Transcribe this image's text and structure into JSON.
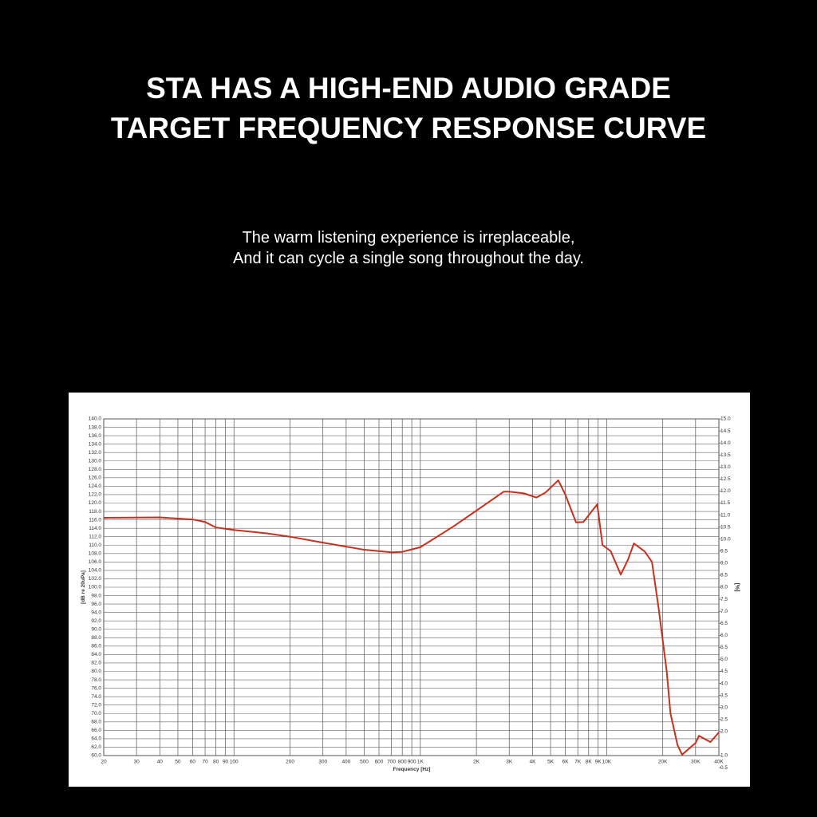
{
  "headline": [
    "STA HAS A HIGH-END AUDIO GRADE",
    "TARGET FREQUENCY RESPONSE CURVE"
  ],
  "subtitle": [
    "The warm listening experience is irreplaceable,",
    "And it can cycle a single song throughout the day."
  ],
  "chart_data": {
    "type": "line",
    "xlabel": "Frequency [Hz]",
    "ylabel": "[dB re 20uPa]",
    "y2label": "[%]",
    "xscale": "log",
    "grid": true,
    "xlim": [
      20,
      40000
    ],
    "xticks": [
      20,
      30,
      40,
      50,
      60,
      70,
      80,
      90,
      100,
      200,
      300,
      400,
      500,
      600,
      700,
      800,
      900,
      {
        "value": 1000,
        "label": "1K"
      },
      {
        "value": 2000,
        "label": "2K"
      },
      {
        "value": 3000,
        "label": "3K"
      },
      {
        "value": 4000,
        "label": "4K"
      },
      {
        "value": 5000,
        "label": "5K"
      },
      {
        "value": 6000,
        "label": "6K"
      },
      {
        "value": 7000,
        "label": "7K"
      },
      {
        "value": 8000,
        "label": "8K"
      },
      {
        "value": 9000,
        "label": "9K"
      },
      {
        "value": 10000,
        "label": "10K"
      },
      {
        "value": 20000,
        "label": "20K"
      },
      {
        "value": 30000,
        "label": "30K"
      },
      {
        "value": 40000,
        "label": "40K"
      }
    ],
    "ylim": [
      60,
      140
    ],
    "yticks": [
      {
        "value": 60,
        "label": "60.0"
      },
      {
        "value": 62,
        "label": "62.0"
      },
      {
        "value": 64,
        "label": "64.0"
      },
      {
        "value": 66,
        "label": "66.0"
      },
      {
        "value": 68,
        "label": "68.0"
      },
      {
        "value": 70,
        "label": "70.0"
      },
      {
        "value": 72,
        "label": "72.0"
      },
      {
        "value": 74,
        "label": "74.0"
      },
      {
        "value": 76,
        "label": "76.0"
      },
      {
        "value": 78,
        "label": "78.0"
      },
      {
        "value": 80,
        "label": "80.0"
      },
      {
        "value": 82,
        "label": "82.0"
      },
      {
        "value": 84,
        "label": "84.0"
      },
      {
        "value": 86,
        "label": "86.0"
      },
      {
        "value": 88,
        "label": "88.0"
      },
      {
        "value": 90,
        "label": "90.0"
      },
      {
        "value": 92,
        "label": "92.0"
      },
      {
        "value": 94,
        "label": "94.0"
      },
      {
        "value": 96,
        "label": "96.0"
      },
      {
        "value": 98,
        "label": "98.0"
      },
      {
        "value": 100,
        "label": "100.0"
      },
      {
        "value": 102,
        "label": "102.0"
      },
      {
        "value": 104,
        "label": "104.0"
      },
      {
        "value": 106,
        "label": "106.0"
      },
      {
        "value": 108,
        "label": "108.0"
      },
      {
        "value": 110,
        "label": "110.0"
      },
      {
        "value": 112,
        "label": "112.0"
      },
      {
        "value": 114,
        "label": "114.0"
      },
      {
        "value": 116,
        "label": "116.0"
      },
      {
        "value": 118,
        "label": "118.0"
      },
      {
        "value": 120,
        "label": "120.0"
      },
      {
        "value": 122,
        "label": "122.0"
      },
      {
        "value": 124,
        "label": "124.0"
      },
      {
        "value": 126,
        "label": "126.0"
      },
      {
        "value": 128,
        "label": "128.0"
      },
      {
        "value": 130,
        "label": "130.0"
      },
      {
        "value": 132,
        "label": "132.0"
      },
      {
        "value": 134,
        "label": "134.0"
      },
      {
        "value": 136,
        "label": "136.0"
      },
      {
        "value": 138,
        "label": "138.0"
      },
      {
        "value": 140,
        "label": "140.0"
      }
    ],
    "y2lim": [
      1,
      15
    ],
    "y2ticks": [
      {
        "value": 1,
        "label": "1.0"
      },
      0.5,
      {
        "value": 2,
        "label": "2.0"
      },
      2.5,
      {
        "value": 3,
        "label": "3.0"
      },
      3.5,
      {
        "value": 4,
        "label": "4.0"
      },
      4.5,
      {
        "value": 5,
        "label": "5.0"
      },
      5.5,
      {
        "value": 6,
        "label": "6.0"
      },
      6.5,
      {
        "value": 7,
        "label": "7.0"
      },
      7.5,
      {
        "value": 8,
        "label": "8.0"
      },
      8.5,
      {
        "value": 9,
        "label": "9.0"
      },
      9.5,
      {
        "value": 10,
        "label": "10.0"
      },
      10.5,
      {
        "value": 11,
        "label": "11.0"
      },
      11.5,
      {
        "value": 12,
        "label": "12.0"
      },
      12.5,
      {
        "value": 13,
        "label": "13.0"
      },
      13.5,
      {
        "value": 14,
        "label": "14.0"
      },
      14.5,
      {
        "value": 15,
        "label": "15.0"
      }
    ],
    "x": [
      20,
      40,
      60,
      70,
      80,
      100,
      150,
      200,
      300,
      500,
      700,
      800,
      1000,
      1500,
      2000,
      2800,
      3000,
      3600,
      4200,
      4700,
      5500,
      6000,
      6850,
      7500,
      8900,
      9500,
      10500,
      11900,
      13000,
      14000,
      16000,
      17500,
      19000,
      21000,
      22000,
      24000,
      25400,
      30000,
      31300,
      36000,
      40000
    ],
    "series": [
      {
        "color": "#c8301e",
        "values": [
          116.5,
          116.6,
          116.1,
          115.5,
          114.2,
          113.6,
          112.8,
          112,
          110.6,
          108.9,
          108.3,
          108.4,
          109.5,
          114.4,
          118.2,
          122.7,
          122.7,
          122.3,
          121.3,
          122.5,
          125.4,
          122,
          115.4,
          115.5,
          119.7,
          110,
          108.6,
          103,
          106.5,
          110.4,
          108.5,
          106,
          95,
          80,
          70,
          62.5,
          60.2,
          63,
          64.7,
          63.2,
          65.5
        ]
      }
    ]
  }
}
